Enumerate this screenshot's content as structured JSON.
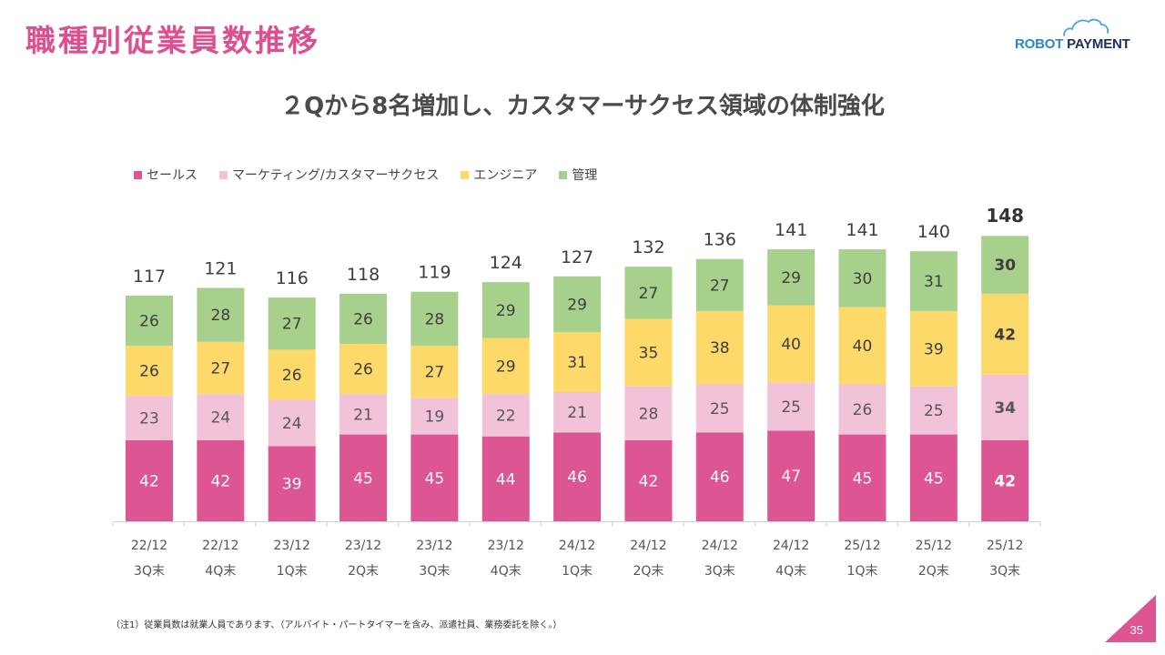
{
  "header": {
    "title": "職種別従業員数推移",
    "logo_part1": "ROBOT",
    "logo_part2": "PAYMENT"
  },
  "subtitle": "２Qから8名増加し、カスタマーサクセス領域の体制強化",
  "colors": {
    "sales": "#dd5592",
    "marketing_cs": "#f2c3d8",
    "engineer": "#fdd96a",
    "admin": "#a8d08d",
    "title_pink": "#dd4f8e"
  },
  "chart_data": {
    "type": "bar",
    "stacked": true,
    "title": "",
    "xlabel": "",
    "ylabel": "",
    "ylim": [
      0,
      150
    ],
    "grid": false,
    "legend_position": "top-left",
    "categories": [
      [
        "22/12",
        "3Q末"
      ],
      [
        "22/12",
        "4Q末"
      ],
      [
        "23/12",
        "1Q末"
      ],
      [
        "23/12",
        "2Q末"
      ],
      [
        "23/12",
        "3Q末"
      ],
      [
        "23/12",
        "4Q末"
      ],
      [
        "24/12",
        "1Q末"
      ],
      [
        "24/12",
        "2Q末"
      ],
      [
        "24/12",
        "3Q末"
      ],
      [
        "24/12",
        "4Q末"
      ],
      [
        "25/12",
        "1Q末"
      ],
      [
        "25/12",
        "2Q末"
      ],
      [
        "25/12",
        "3Q末"
      ]
    ],
    "series": [
      {
        "name": "セールス",
        "color_key": "sales",
        "values": [
          42,
          42,
          39,
          45,
          45,
          44,
          46,
          42,
          46,
          47,
          45,
          45,
          42
        ]
      },
      {
        "name": "マーケティング/カスタマーサクセス",
        "color_key": "marketing_cs",
        "values": [
          23,
          24,
          24,
          21,
          19,
          22,
          21,
          28,
          25,
          25,
          26,
          25,
          34
        ]
      },
      {
        "name": "エンジニア",
        "color_key": "engineer",
        "values": [
          26,
          27,
          26,
          26,
          27,
          29,
          31,
          35,
          38,
          40,
          40,
          39,
          42
        ]
      },
      {
        "name": "管理",
        "color_key": "admin",
        "values": [
          26,
          28,
          27,
          26,
          28,
          29,
          29,
          27,
          27,
          29,
          30,
          31,
          30
        ]
      }
    ],
    "totals": [
      117,
      121,
      116,
      118,
      119,
      124,
      127,
      132,
      136,
      141,
      141,
      140,
      148
    ],
    "highlight_last": true
  },
  "footnote": "（注1）従業員数は就業人員であります、（アルバイト・パートタイマーを含み、派遣社員、業務委託を除く。）",
  "page_number": "35"
}
